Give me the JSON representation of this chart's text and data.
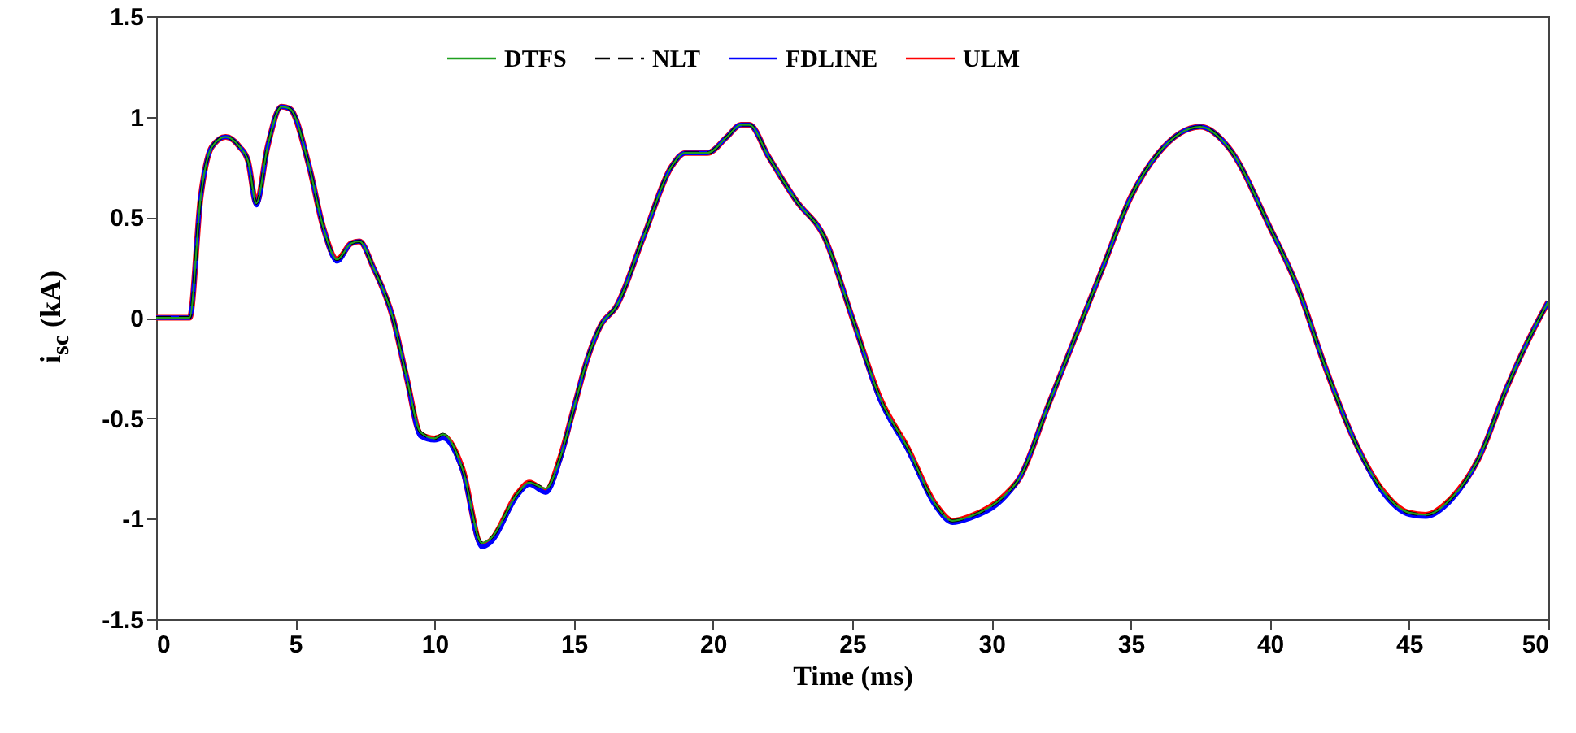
{
  "chart_data": {
    "type": "line",
    "xlabel": "Time (ms)",
    "ylabel": "i$_{sc}$ (kA)",
    "x": [
      0,
      1.2,
      1.6,
      2.0,
      2.5,
      3.0,
      3.3,
      3.6,
      4.0,
      4.5,
      4.8,
      5.5,
      6.0,
      6.5,
      7.0,
      7.3,
      7.8,
      8.5,
      9.0,
      9.5,
      10.0,
      10.3,
      11.0,
      11.7,
      12.0,
      13.0,
      13.4,
      14.0,
      14.5,
      15.0,
      15.5,
      16.0,
      16.5,
      17.5,
      18.5,
      19.0,
      19.8,
      20.5,
      21.0,
      21.3,
      22.0,
      23.0,
      24.0,
      25.0,
      26.0,
      27.0,
      28.0,
      28.6,
      29.2,
      30.5,
      31.0,
      32.0,
      33.0,
      34.0,
      35.0,
      36.0,
      37.5,
      38.5,
      40.0,
      41.0,
      42.0,
      43.0,
      44.0,
      45.0,
      45.6,
      46.5,
      47.5,
      48.5,
      49.5,
      50.0
    ],
    "series": [
      {
        "name": "DTFS",
        "color": "#1fa01f",
        "line_style": "solid",
        "values": [
          0,
          0,
          0.6,
          0.85,
          0.9,
          0.85,
          0.78,
          0.57,
          0.85,
          1.05,
          1.04,
          0.75,
          0.45,
          0.29,
          0.37,
          0.38,
          0.25,
          0.0,
          -0.3,
          -0.57,
          -0.6,
          -0.58,
          -0.75,
          -1.12,
          -1.1,
          -0.87,
          -0.82,
          -0.85,
          -0.7,
          -0.45,
          -0.2,
          -0.03,
          0.05,
          0.4,
          0.75,
          0.82,
          0.82,
          0.9,
          0.96,
          0.96,
          0.8,
          0.58,
          0.4,
          0.0,
          -0.4,
          -0.65,
          -0.93,
          -1.01,
          -0.99,
          -0.88,
          -0.8,
          -0.45,
          -0.1,
          0.25,
          0.6,
          0.82,
          0.95,
          0.85,
          0.45,
          0.15,
          -0.25,
          -0.6,
          -0.85,
          -0.97,
          -0.98,
          -0.9,
          -0.7,
          -0.35,
          -0.05,
          0.08
        ]
      },
      {
        "name": "NLT",
        "color": "#000000",
        "line_style": "dashed",
        "values": [
          0,
          0,
          0.6,
          0.85,
          0.9,
          0.85,
          0.78,
          0.57,
          0.85,
          1.05,
          1.04,
          0.75,
          0.45,
          0.29,
          0.37,
          0.38,
          0.25,
          0.0,
          -0.3,
          -0.57,
          -0.6,
          -0.58,
          -0.75,
          -1.12,
          -1.1,
          -0.87,
          -0.82,
          -0.85,
          -0.7,
          -0.45,
          -0.2,
          -0.03,
          0.05,
          0.4,
          0.75,
          0.82,
          0.82,
          0.9,
          0.96,
          0.96,
          0.8,
          0.58,
          0.4,
          0.0,
          -0.4,
          -0.65,
          -0.93,
          -1.01,
          -0.99,
          -0.88,
          -0.8,
          -0.45,
          -0.1,
          0.25,
          0.6,
          0.82,
          0.95,
          0.85,
          0.45,
          0.15,
          -0.25,
          -0.6,
          -0.85,
          -0.97,
          -0.98,
          -0.9,
          -0.7,
          -0.35,
          -0.05,
          0.08
        ]
      },
      {
        "name": "FDLINE",
        "color": "#0000ff",
        "line_style": "solid",
        "values": [
          0,
          0,
          0.6,
          0.85,
          0.9,
          0.85,
          0.78,
          0.56,
          0.85,
          1.05,
          1.04,
          0.75,
          0.45,
          0.28,
          0.37,
          0.38,
          0.25,
          0.0,
          -0.3,
          -0.59,
          -0.61,
          -0.6,
          -0.76,
          -1.14,
          -1.12,
          -0.88,
          -0.83,
          -0.87,
          -0.71,
          -0.45,
          -0.2,
          -0.03,
          0.05,
          0.4,
          0.75,
          0.82,
          0.82,
          0.9,
          0.96,
          0.96,
          0.8,
          0.58,
          0.4,
          0.0,
          -0.41,
          -0.66,
          -0.94,
          -1.02,
          -1.0,
          -0.89,
          -0.8,
          -0.45,
          -0.1,
          0.25,
          0.6,
          0.82,
          0.95,
          0.85,
          0.45,
          0.15,
          -0.25,
          -0.6,
          -0.86,
          -0.98,
          -0.99,
          -0.91,
          -0.7,
          -0.35,
          -0.05,
          0.08
        ]
      },
      {
        "name": "ULM",
        "color": "#ff0000",
        "line_style": "solid",
        "values": [
          0,
          0,
          0.6,
          0.85,
          0.9,
          0.85,
          0.78,
          0.57,
          0.85,
          1.05,
          1.04,
          0.75,
          0.45,
          0.29,
          0.37,
          0.38,
          0.25,
          0.0,
          -0.3,
          -0.58,
          -0.6,
          -0.59,
          -0.75,
          -1.13,
          -1.11,
          -0.87,
          -0.82,
          -0.86,
          -0.7,
          -0.45,
          -0.2,
          -0.03,
          0.05,
          0.4,
          0.75,
          0.82,
          0.82,
          0.9,
          0.96,
          0.96,
          0.8,
          0.58,
          0.4,
          0.0,
          -0.4,
          -0.65,
          -0.93,
          -1.01,
          -0.99,
          -0.88,
          -0.8,
          -0.45,
          -0.1,
          0.25,
          0.6,
          0.82,
          0.95,
          0.85,
          0.45,
          0.15,
          -0.25,
          -0.6,
          -0.85,
          -0.97,
          -0.98,
          -0.9,
          -0.7,
          -0.35,
          -0.05,
          0.08
        ]
      }
    ],
    "xlim": [
      0,
      50
    ],
    "xticks": [
      0,
      5,
      10,
      15,
      20,
      25,
      30,
      35,
      40,
      45,
      50
    ],
    "ylim": [
      -1.5,
      1.5
    ],
    "yticks": [
      -1.5,
      -1,
      -0.5,
      0,
      0.5,
      1,
      1.5
    ],
    "legend": "top",
    "grid": false
  }
}
